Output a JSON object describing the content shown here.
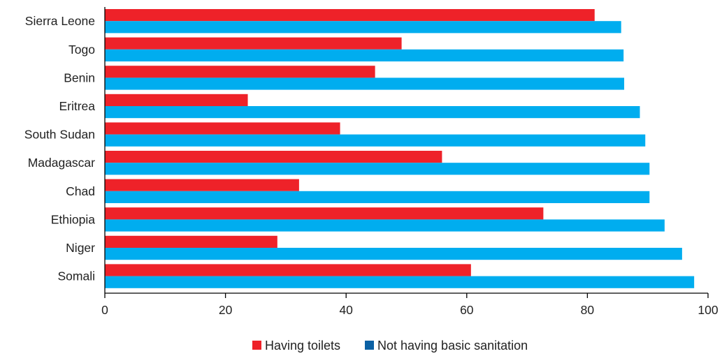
{
  "chart_data": {
    "type": "bar",
    "orientation": "horizontal",
    "categories": [
      "Sierra Leone",
      "Togo",
      "Benin",
      "Eritrea",
      "South Sudan",
      "Madagascar",
      "Chad",
      "Ethiopia",
      "Niger",
      "Somali"
    ],
    "series": [
      {
        "name": "Having toilets",
        "color": "#ee2229",
        "values": [
          81.2,
          49.2,
          44.8,
          23.7,
          39.0,
          55.9,
          32.2,
          72.7,
          28.6,
          60.7
        ]
      },
      {
        "name": "Not having basic sanitation",
        "color": "#00adef",
        "values": [
          85.6,
          86.0,
          86.1,
          88.7,
          89.6,
          90.3,
          90.3,
          92.8,
          95.7,
          97.7
        ]
      }
    ],
    "legend_swatch_colors": [
      "#ee2229",
      "#0b61a4"
    ],
    "xlim": [
      0,
      100
    ],
    "xticks": [
      0,
      20,
      40,
      60,
      80,
      100
    ],
    "legend_position": "bottom-center",
    "grid": false,
    "title": "",
    "xlabel": "",
    "ylabel": ""
  }
}
